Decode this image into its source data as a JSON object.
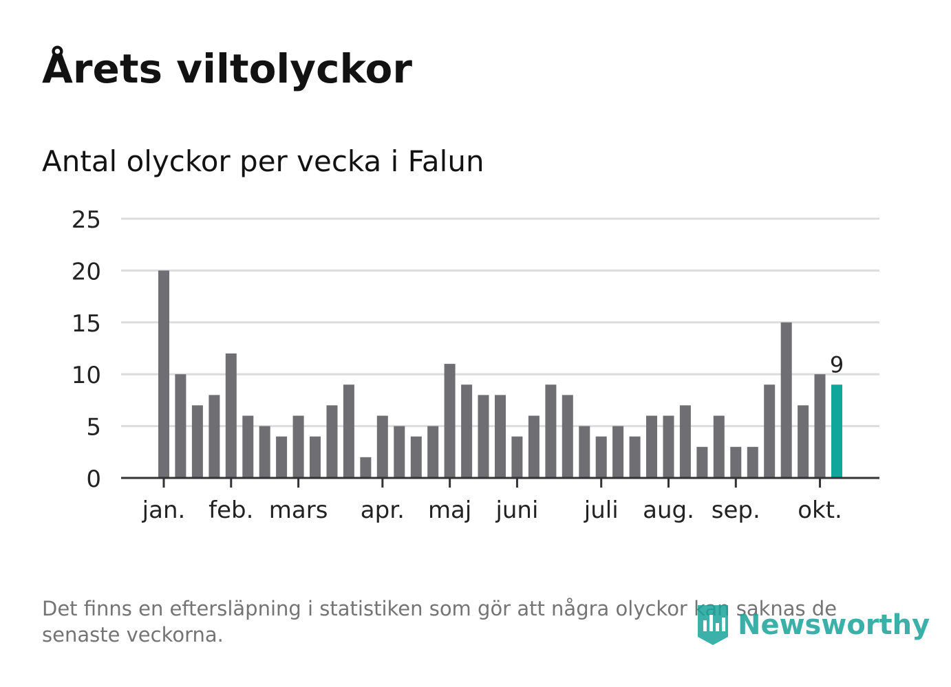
{
  "header": {
    "title": "Årets viltolyckor",
    "subtitle": "Antal olyckor per vecka i Falun"
  },
  "footer": {
    "note": "Det finns en eftersläpning i statistiken som gör att några olyckor kan saknas de senaste veckorna.",
    "logo_text": "Newsworthy"
  },
  "colors": {
    "bar": "#6e6e73",
    "highlight": "#0fa79a",
    "grid": "#dcdcdc",
    "axis": "#333333",
    "text": "#222222"
  },
  "chart_data": {
    "type": "bar",
    "title": "Årets viltolyckor",
    "subtitle": "Antal olyckor per vecka i Falun",
    "xlabel": "",
    "ylabel": "",
    "ylim": [
      0,
      25
    ],
    "yticks": [
      0,
      5,
      10,
      15,
      20,
      25
    ],
    "grid": true,
    "values": [
      20,
      10,
      7,
      8,
      12,
      6,
      5,
      4,
      6,
      4,
      7,
      9,
      2,
      6,
      5,
      4,
      5,
      11,
      9,
      8,
      8,
      4,
      6,
      9,
      8,
      5,
      4,
      5,
      4,
      6,
      6,
      7,
      3,
      6,
      3,
      3,
      9,
      15,
      7,
      10,
      9
    ],
    "highlight_index": 40,
    "highlight_label": "9",
    "month_ticks": [
      {
        "label": "jan.",
        "week_index": 0
      },
      {
        "label": "feb.",
        "week_index": 4
      },
      {
        "label": "mars",
        "week_index": 8
      },
      {
        "label": "apr.",
        "week_index": 13
      },
      {
        "label": "maj",
        "week_index": 17
      },
      {
        "label": "juni",
        "week_index": 21
      },
      {
        "label": "juli",
        "week_index": 26
      },
      {
        "label": "aug.",
        "week_index": 30
      },
      {
        "label": "sep.",
        "week_index": 34
      },
      {
        "label": "okt.",
        "week_index": 39
      }
    ]
  }
}
